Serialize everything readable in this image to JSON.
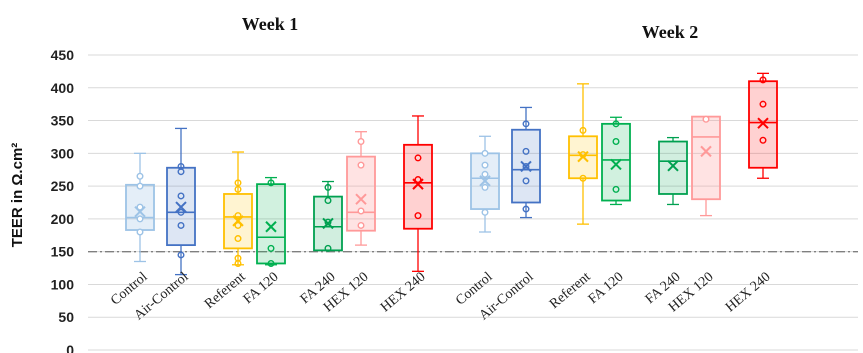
{
  "chart_data": {
    "type": "box",
    "ylabel": "TEER in Ω.cm²",
    "ylim": [
      0,
      450
    ],
    "yticks": [
      0,
      50,
      100,
      150,
      200,
      250,
      300,
      350,
      400,
      450
    ],
    "grid": "horizontal",
    "reference_line": {
      "y": 150,
      "style": "dash-dot",
      "color": "#7f7f7f"
    },
    "groups": [
      {
        "title": "Week 1",
        "boxes": [
          {
            "label": "Control",
            "color": "#9dc3e6",
            "light": true,
            "whisker_low": 135,
            "q1": 183,
            "median": 202,
            "q3": 252,
            "whisker_high": 300,
            "mean": 211,
            "points": [
              180,
              200,
              218,
              250,
              265
            ]
          },
          {
            "label": "Air-Control",
            "color": "#4472c4",
            "light": false,
            "whisker_low": 115,
            "q1": 160,
            "median": 210,
            "q3": 278,
            "whisker_high": 338,
            "mean": 218,
            "points": [
              145,
              190,
              210,
              235,
              272,
              280
            ]
          },
          {
            "label": "Referent",
            "color": "#ffc000",
            "light": false,
            "whisker_low": 130,
            "q1": 155,
            "median": 203,
            "q3": 238,
            "whisker_high": 302,
            "mean": 197,
            "points": [
              132,
              140,
              170,
              190,
              205,
              245,
              255
            ]
          },
          {
            "label": "FA 120",
            "color": "#00b050",
            "light": false,
            "whisker_low": 130,
            "q1": 132,
            "median": 172,
            "q3": 253,
            "whisker_high": 263,
            "mean": 188,
            "points": [
              132,
              155,
              255
            ]
          },
          {
            "label": "FA 240",
            "color": "#00a050",
            "light": false,
            "whisker_low": 152,
            "q1": 152,
            "median": 188,
            "q3": 234,
            "whisker_high": 257,
            "mean": 193,
            "points": [
              155,
              195,
              228,
              248
            ]
          },
          {
            "label": "HEX 120",
            "color": "#ff9999",
            "light": true,
            "whisker_low": 160,
            "q1": 182,
            "median": 210,
            "q3": 295,
            "whisker_high": 333,
            "mean": 230,
            "points": [
              190,
              212,
              282,
              318
            ]
          },
          {
            "label": "HEX 240",
            "color": "#ff0000",
            "light": false,
            "whisker_low": 120,
            "q1": 185,
            "median": 255,
            "q3": 313,
            "whisker_high": 357,
            "mean": 253,
            "points": [
              205,
              260,
              293
            ]
          }
        ]
      },
      {
        "title": "Week 2",
        "boxes": [
          {
            "label": "Control",
            "color": "#9dc3e6",
            "light": true,
            "whisker_low": 180,
            "q1": 215,
            "median": 262,
            "q3": 300,
            "whisker_high": 326,
            "mean": 258,
            "points": [
              210,
              248,
              268,
              282,
              300
            ]
          },
          {
            "label": "Air-Control",
            "color": "#4472c4",
            "light": false,
            "whisker_low": 202,
            "q1": 225,
            "median": 275,
            "q3": 336,
            "whisker_high": 370,
            "mean": 280,
            "points": [
              215,
              258,
              280,
              303,
              345
            ]
          },
          {
            "label": "Referent",
            "color": "#ffc000",
            "light": false,
            "whisker_low": 192,
            "q1": 262,
            "median": 297,
            "q3": 326,
            "whisker_high": 406,
            "mean": 295,
            "points": [
              262,
              298,
              335
            ]
          },
          {
            "label": "FA 120",
            "color": "#00b050",
            "light": false,
            "whisker_low": 222,
            "q1": 228,
            "median": 290,
            "q3": 345,
            "whisker_high": 355,
            "mean": 283,
            "points": [
              245,
              318,
              345
            ]
          },
          {
            "label": "FA 240",
            "color": "#00a050",
            "light": false,
            "whisker_low": 222,
            "q1": 238,
            "median": 288,
            "q3": 318,
            "whisker_high": 324,
            "mean": 281,
            "points": []
          },
          {
            "label": "HEX 120",
            "color": "#ff9999",
            "light": true,
            "whisker_low": 205,
            "q1": 230,
            "median": 325,
            "q3": 356,
            "whisker_high": 356,
            "mean": 303,
            "points": [
              352
            ]
          },
          {
            "label": "HEX 240",
            "color": "#ff0000",
            "light": false,
            "whisker_low": 262,
            "q1": 278,
            "median": 347,
            "q3": 410,
            "whisker_high": 422,
            "mean": 346,
            "points": [
              320,
              375,
              412
            ]
          }
        ]
      }
    ]
  }
}
